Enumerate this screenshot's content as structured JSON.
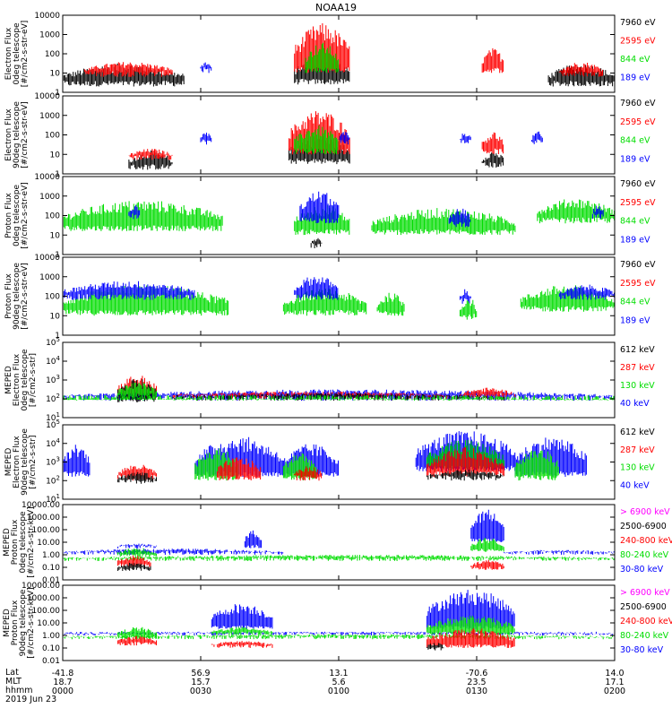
{
  "title": "NOAA19",
  "colors": {
    "black": "#000000",
    "red": "#ff0000",
    "green": "#00dd00",
    "blue": "#0000ff",
    "magenta": "#ff00ff"
  },
  "chart_data": [
    {
      "type": "line",
      "ylabel": [
        "Electron Flux",
        "0deg telescope",
        "[#/cm2-s-str-eV]"
      ],
      "scale": "log",
      "yticks": [
        "10000",
        "1000",
        "100",
        "10",
        "1"
      ],
      "legend": [
        {
          "text": "7960 eV",
          "color": "black"
        },
        {
          "text": "2595 eV",
          "color": "red"
        },
        {
          "text": "844 eV",
          "color": "green"
        },
        {
          "text": "189 eV",
          "color": "blue"
        }
      ],
      "series": [
        {
          "color": "black",
          "segments": [
            {
              "from": 0.0,
              "to": 0.22,
              "lo": 0.3,
              "hi": 1.5
            },
            {
              "from": 0.42,
              "to": 0.52,
              "lo": 0.4,
              "hi": 1.9
            },
            {
              "from": 0.88,
              "to": 1.0,
              "lo": 0.3,
              "hi": 1.5
            }
          ]
        },
        {
          "color": "red",
          "segments": [
            {
              "from": 0.04,
              "to": 0.2,
              "lo": 0.8,
              "hi": 1.6
            },
            {
              "from": 0.42,
              "to": 0.52,
              "lo": 1.0,
              "hi": 3.6
            },
            {
              "from": 0.76,
              "to": 0.8,
              "lo": 1.0,
              "hi": 2.3
            },
            {
              "from": 0.9,
              "to": 0.98,
              "lo": 0.8,
              "hi": 1.6
            }
          ]
        },
        {
          "color": "green",
          "segments": [
            {
              "from": 0.44,
              "to": 0.5,
              "lo": 1.0,
              "hi": 2.6
            }
          ]
        },
        {
          "color": "blue",
          "segments": [
            {
              "from": 0.25,
              "to": 0.27,
              "lo": 1.0,
              "hi": 1.6
            }
          ]
        }
      ]
    },
    {
      "type": "line",
      "ylabel": [
        "Electron Flux",
        "90deg telescope",
        "[#/cm2-s-str-eV]"
      ],
      "scale": "log",
      "yticks": [
        "10000",
        "1000",
        "100",
        "10",
        "1"
      ],
      "legend": [
        {
          "text": "7960 eV",
          "color": "black"
        },
        {
          "text": "2595 eV",
          "color": "red"
        },
        {
          "text": "844 eV",
          "color": "green"
        },
        {
          "text": "189 eV",
          "color": "blue"
        }
      ],
      "series": [
        {
          "color": "black",
          "segments": [
            {
              "from": 0.12,
              "to": 0.2,
              "lo": 0.2,
              "hi": 1.2
            },
            {
              "from": 0.41,
              "to": 0.52,
              "lo": 0.5,
              "hi": 2.0
            },
            {
              "from": 0.76,
              "to": 0.8,
              "lo": 0.3,
              "hi": 1.2
            }
          ]
        },
        {
          "color": "red",
          "segments": [
            {
              "from": 0.12,
              "to": 0.2,
              "lo": 0.7,
              "hi": 1.3
            },
            {
              "from": 0.41,
              "to": 0.52,
              "lo": 1.0,
              "hi": 3.3
            },
            {
              "from": 0.76,
              "to": 0.8,
              "lo": 1.0,
              "hi": 2.2
            }
          ]
        },
        {
          "color": "green",
          "segments": [
            {
              "from": 0.42,
              "to": 0.5,
              "lo": 1.0,
              "hi": 2.5
            }
          ]
        },
        {
          "color": "blue",
          "segments": [
            {
              "from": 0.25,
              "to": 0.27,
              "lo": 1.5,
              "hi": 2.2
            },
            {
              "from": 0.5,
              "to": 0.52,
              "lo": 1.5,
              "hi": 2.2
            },
            {
              "from": 0.72,
              "to": 0.74,
              "lo": 1.5,
              "hi": 2.2
            },
            {
              "from": 0.85,
              "to": 0.87,
              "lo": 1.5,
              "hi": 2.2
            }
          ]
        }
      ]
    },
    {
      "type": "line",
      "ylabel": [
        "Proton Flux",
        "0deg telescope",
        "[#/cm2-s-str-eV]"
      ],
      "scale": "log",
      "yticks": [
        "10000",
        "1000",
        "100",
        "10",
        "1"
      ],
      "legend": [
        {
          "text": "7960 eV",
          "color": "black"
        },
        {
          "text": "2595 eV",
          "color": "red"
        },
        {
          "text": "844 eV",
          "color": "green"
        },
        {
          "text": "189 eV",
          "color": "blue"
        }
      ],
      "series": [
        {
          "color": "green",
          "segments": [
            {
              "from": 0.0,
              "to": 0.29,
              "lo": 1.2,
              "hi": 2.8
            },
            {
              "from": 0.42,
              "to": 0.52,
              "lo": 1.0,
              "hi": 2.6
            },
            {
              "from": 0.56,
              "to": 0.82,
              "lo": 1.0,
              "hi": 2.4
            },
            {
              "from": 0.86,
              "to": 1.0,
              "lo": 1.6,
              "hi": 2.9
            }
          ]
        },
        {
          "color": "blue",
          "segments": [
            {
              "from": 0.43,
              "to": 0.5,
              "lo": 1.6,
              "hi": 3.3
            },
            {
              "from": 0.12,
              "to": 0.14,
              "lo": 1.8,
              "hi": 2.6
            },
            {
              "from": 0.7,
              "to": 0.74,
              "lo": 1.4,
              "hi": 2.4
            },
            {
              "from": 0.96,
              "to": 0.98,
              "lo": 1.8,
              "hi": 2.6
            }
          ]
        },
        {
          "color": "black",
          "segments": [
            {
              "from": 0.45,
              "to": 0.47,
              "lo": 0.3,
              "hi": 0.9
            }
          ]
        }
      ]
    },
    {
      "type": "line",
      "ylabel": [
        "Proton Flux",
        "90deg telescope",
        "[#/cm2-s-str-eV]"
      ],
      "scale": "log",
      "yticks": [
        "10000",
        "1000",
        "100",
        "10",
        "1"
      ],
      "legend": [
        {
          "text": "7960 eV",
          "color": "black"
        },
        {
          "text": "2595 eV",
          "color": "red"
        },
        {
          "text": "844 eV",
          "color": "green"
        },
        {
          "text": "189 eV",
          "color": "blue"
        }
      ],
      "series": [
        {
          "color": "green",
          "segments": [
            {
              "from": 0.0,
              "to": 0.3,
              "lo": 1.0,
              "hi": 2.6
            },
            {
              "from": 0.4,
              "to": 0.55,
              "lo": 1.0,
              "hi": 2.4
            },
            {
              "from": 0.57,
              "to": 0.62,
              "lo": 1.0,
              "hi": 2.2
            },
            {
              "from": 0.72,
              "to": 0.75,
              "lo": 0.8,
              "hi": 2.0
            },
            {
              "from": 0.83,
              "to": 1.0,
              "lo": 1.2,
              "hi": 2.6
            }
          ]
        },
        {
          "color": "blue",
          "segments": [
            {
              "from": 0.0,
              "to": 0.24,
              "lo": 1.8,
              "hi": 2.8
            },
            {
              "from": 0.42,
              "to": 0.5,
              "lo": 1.8,
              "hi": 3.1
            },
            {
              "from": 0.72,
              "to": 0.74,
              "lo": 1.6,
              "hi": 2.4
            },
            {
              "from": 0.9,
              "to": 1.0,
              "lo": 1.8,
              "hi": 2.6
            }
          ]
        }
      ]
    },
    {
      "type": "line",
      "ylabel": [
        "MEPED",
        "Electron Flux",
        "0deg telescope",
        "[#/cm2-s-str]"
      ],
      "scale": "log",
      "yticks": [
        "10^5",
        "10^4",
        "10^3",
        "10^2",
        "10^1"
      ],
      "legend": [
        {
          "text": "612 keV",
          "color": "black"
        },
        {
          "text": "287 keV",
          "color": "red"
        },
        {
          "text": "130 keV",
          "color": "green"
        },
        {
          "text": "40 keV",
          "color": "blue"
        }
      ],
      "series": [
        {
          "color": "blue",
          "segments": [
            {
              "from": 0.0,
              "to": 1.0,
              "lo": 1.9,
              "hi": 2.5
            }
          ]
        },
        {
          "color": "red",
          "segments": [
            {
              "from": 0.1,
              "to": 0.17,
              "lo": 2.0,
              "hi": 3.3
            },
            {
              "from": 0.2,
              "to": 0.7,
              "lo": 2.0,
              "hi": 2.4
            },
            {
              "from": 0.72,
              "to": 0.82,
              "lo": 2.0,
              "hi": 2.6
            }
          ]
        },
        {
          "color": "black",
          "segments": [
            {
              "from": 0.1,
              "to": 0.17,
              "lo": 1.8,
              "hi": 3.1
            },
            {
              "from": 0.2,
              "to": 0.8,
              "lo": 1.9,
              "hi": 2.3
            }
          ]
        },
        {
          "color": "green",
          "segments": [
            {
              "from": 0.0,
              "to": 1.0,
              "lo": 1.9,
              "hi": 2.0
            },
            {
              "from": 0.1,
              "to": 0.17,
              "lo": 2.0,
              "hi": 2.9
            }
          ]
        }
      ]
    },
    {
      "type": "line",
      "ylabel": [
        "MEPED",
        "Electron Flux",
        "90deg telescope",
        "[#/cm2-s-str]"
      ],
      "scale": "log",
      "yticks": [
        "10^5",
        "10^4",
        "10^3",
        "10^2",
        "10^1"
      ],
      "legend": [
        {
          "text": "612 keV",
          "color": "black"
        },
        {
          "text": "287 keV",
          "color": "red"
        },
        {
          "text": "130 keV",
          "color": "green"
        },
        {
          "text": "40 keV",
          "color": "blue"
        }
      ],
      "series": [
        {
          "color": "blue",
          "segments": [
            {
              "from": 0.0,
              "to": 0.05,
              "lo": 2.2,
              "hi": 4.0
            },
            {
              "from": 0.24,
              "to": 0.4,
              "lo": 2.2,
              "hi": 4.4
            },
            {
              "from": 0.4,
              "to": 0.5,
              "lo": 2.2,
              "hi": 4.0
            },
            {
              "from": 0.64,
              "to": 0.82,
              "lo": 2.5,
              "hi": 4.7
            },
            {
              "from": 0.82,
              "to": 0.95,
              "lo": 2.2,
              "hi": 4.4
            }
          ]
        },
        {
          "color": "green",
          "segments": [
            {
              "from": 0.24,
              "to": 0.32,
              "lo": 2.0,
              "hi": 3.8
            },
            {
              "from": 0.4,
              "to": 0.46,
              "lo": 2.0,
              "hi": 3.6
            },
            {
              "from": 0.66,
              "to": 0.8,
              "lo": 2.5,
              "hi": 4.2
            },
            {
              "from": 0.82,
              "to": 0.9,
              "lo": 2.0,
              "hi": 3.8
            }
          ]
        },
        {
          "color": "red",
          "segments": [
            {
              "from": 0.1,
              "to": 0.17,
              "lo": 2.0,
              "hi": 2.9
            },
            {
              "from": 0.28,
              "to": 0.36,
              "lo": 2.0,
              "hi": 3.3
            },
            {
              "from": 0.42,
              "to": 0.47,
              "lo": 2.0,
              "hi": 2.8
            },
            {
              "from": 0.66,
              "to": 0.8,
              "lo": 2.2,
              "hi": 3.8
            }
          ]
        },
        {
          "color": "black",
          "segments": [
            {
              "from": 0.1,
              "to": 0.17,
              "lo": 1.8,
              "hi": 2.5
            },
            {
              "from": 0.66,
              "to": 0.8,
              "lo": 2.0,
              "hi": 2.6
            }
          ]
        }
      ]
    },
    {
      "type": "line",
      "ylabel": [
        "MEPED",
        "Proton Flux",
        "0deg telescope",
        "[#/cm2-s-str-keV]"
      ],
      "scale": "log",
      "yticks": [
        "10000.00",
        "1000.00",
        "100.00",
        "10.00",
        "1.00",
        "0.10",
        "0.01"
      ],
      "legend": [
        {
          "text": "> 6900 keV",
          "color": "magenta"
        },
        {
          "text": "2500-6900",
          "color": "black"
        },
        {
          "text": "240-800 keV",
          "color": "red"
        },
        {
          "text": "80-240 keV",
          "color": "green"
        },
        {
          "text": "30-80 keV",
          "color": "blue"
        }
      ],
      "series": [
        {
          "color": "blue",
          "segments": [
            {
              "from": 0.0,
              "to": 0.4,
              "lo": 0.0,
              "hi": 0.5
            },
            {
              "from": 0.1,
              "to": 0.17,
              "lo": 0.5,
              "hi": 0.9
            },
            {
              "from": 0.33,
              "to": 0.36,
              "lo": 0.5,
              "hi": 2.0
            },
            {
              "from": 0.74,
              "to": 0.8,
              "lo": 1.0,
              "hi": 3.7
            },
            {
              "from": 0.8,
              "to": 1.0,
              "lo": 0.0,
              "hi": 0.4
            }
          ]
        },
        {
          "color": "green",
          "segments": [
            {
              "from": 0.0,
              "to": 1.0,
              "lo": -0.5,
              "hi": 0.0
            },
            {
              "from": 0.1,
              "to": 0.17,
              "lo": -0.2,
              "hi": 0.6
            },
            {
              "from": 0.74,
              "to": 0.8,
              "lo": 0.2,
              "hi": 1.4
            }
          ]
        },
        {
          "color": "red",
          "segments": [
            {
              "from": 0.1,
              "to": 0.16,
              "lo": -1.0,
              "hi": 0.0
            },
            {
              "from": 0.74,
              "to": 0.8,
              "lo": -1.2,
              "hi": -0.4
            }
          ]
        },
        {
          "color": "black",
          "segments": [
            {
              "from": 0.1,
              "to": 0.16,
              "lo": -1.3,
              "hi": -0.6
            }
          ]
        }
      ]
    },
    {
      "type": "line",
      "ylabel": [
        "MEPED",
        "Proton Flux",
        "90deg telescope",
        "[#/cm2-s-str-keV]"
      ],
      "scale": "log",
      "yticks": [
        "10000.00",
        "1000.00",
        "100.00",
        "10.00",
        "1.00",
        "0.10",
        "0.01"
      ],
      "legend": [
        {
          "text": "> 6900 keV",
          "color": "magenta"
        },
        {
          "text": "2500-6900",
          "color": "black"
        },
        {
          "text": "240-800 keV",
          "color": "red"
        },
        {
          "text": "80-240 keV",
          "color": "green"
        },
        {
          "text": "30-80 keV",
          "color": "blue"
        }
      ],
      "series": [
        {
          "color": "blue",
          "segments": [
            {
              "from": 0.0,
              "to": 1.0,
              "lo": 0.0,
              "hi": 0.3
            },
            {
              "from": 0.27,
              "to": 0.38,
              "lo": 0.5,
              "hi": 2.6
            },
            {
              "from": 0.66,
              "to": 0.82,
              "lo": 0.5,
              "hi": 3.7
            }
          ]
        },
        {
          "color": "green",
          "segments": [
            {
              "from": 0.0,
              "to": 1.0,
              "lo": -0.3,
              "hi": 0.1
            },
            {
              "from": 0.1,
              "to": 0.17,
              "lo": -0.3,
              "hi": 0.7
            },
            {
              "from": 0.27,
              "to": 0.38,
              "lo": 0.0,
              "hi": 0.7
            },
            {
              "from": 0.66,
              "to": 0.82,
              "lo": 0.0,
              "hi": 1.6
            }
          ]
        },
        {
          "color": "red",
          "segments": [
            {
              "from": 0.1,
              "to": 0.17,
              "lo": -0.8,
              "hi": 0.0
            },
            {
              "from": 0.27,
              "to": 0.38,
              "lo": -1.0,
              "hi": -0.4
            },
            {
              "from": 0.66,
              "to": 0.82,
              "lo": -1.0,
              "hi": 0.6
            }
          ]
        },
        {
          "color": "black",
          "segments": [
            {
              "from": 0.66,
              "to": 0.69,
              "lo": -1.2,
              "hi": -0.5
            }
          ]
        }
      ]
    }
  ],
  "xaxis": {
    "row_labels": [
      "Lat",
      "MLT",
      "hhmm"
    ],
    "ticks": [
      {
        "lat": "-41.8",
        "mlt": "18.7",
        "hhmm": "0000"
      },
      {
        "lat": "56.9",
        "mlt": "15.7",
        "hhmm": "0030"
      },
      {
        "lat": "13.1",
        "mlt": "5.6",
        "hhmm": "0100"
      },
      {
        "lat": "-70.6",
        "mlt": "23.5",
        "hhmm": "0130"
      },
      {
        "lat": "14.0",
        "mlt": "17.1",
        "hhmm": "0200"
      }
    ],
    "date": "2019 Jun 23"
  }
}
